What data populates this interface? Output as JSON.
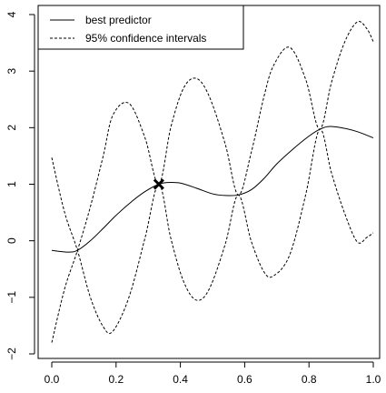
{
  "chart_data": {
    "type": "line",
    "title": "",
    "xlabel": "",
    "ylabel": "",
    "xlim": [
      0,
      1
    ],
    "ylim": [
      -2,
      4
    ],
    "grid": false,
    "legend_position": "top-left",
    "x_ticks": [
      "0.0",
      "0.2",
      "0.4",
      "0.6",
      "0.8",
      "1.0"
    ],
    "y_ticks": [
      "-2",
      "-1",
      "0",
      "1",
      "2",
      "3",
      "4"
    ],
    "legend": [
      {
        "label": "best predictor",
        "style": "solid"
      },
      {
        "label": "95% confidence intervals",
        "style": "dashed"
      }
    ],
    "observation": {
      "x": 0.333,
      "y": 1.0,
      "marker": "x"
    },
    "series": [
      {
        "name": "best predictor",
        "style": "solid",
        "x": [
          0.0,
          0.05,
          0.08,
          0.12,
          0.16,
          0.2,
          0.25,
          0.29,
          0.333,
          0.36,
          0.4,
          0.45,
          0.5,
          0.54,
          0.58,
          0.62,
          0.66,
          0.7,
          0.75,
          0.8,
          0.833,
          0.86,
          0.9,
          0.95,
          1.0
        ],
        "y": [
          -0.17,
          -0.2,
          -0.17,
          0.0,
          0.22,
          0.45,
          0.7,
          0.87,
          1.0,
          1.03,
          1.02,
          0.93,
          0.83,
          0.8,
          0.81,
          0.9,
          1.1,
          1.36,
          1.62,
          1.85,
          1.97,
          2.02,
          2.0,
          1.93,
          1.82
        ]
      },
      {
        "name": "95% confidence intervals",
        "style": "dashed",
        "x": [
          0.0,
          0.04,
          0.08,
          0.12,
          0.16,
          0.19,
          0.24,
          0.29,
          0.333,
          0.37,
          0.41,
          0.45,
          0.49,
          0.54,
          0.58,
          0.62,
          0.66,
          0.69,
          0.74,
          0.79,
          0.833,
          0.87,
          0.91,
          0.95,
          0.98,
          1.0
        ],
        "y": [
          -1.8,
          -0.85,
          -0.17,
          0.6,
          1.5,
          2.22,
          2.43,
          1.82,
          1.0,
          2.0,
          2.7,
          2.87,
          2.55,
          1.7,
          0.81,
          1.55,
          2.55,
          3.1,
          3.42,
          2.85,
          1.97,
          2.8,
          3.5,
          3.87,
          3.75,
          3.52
        ]
      },
      {
        "name": "",
        "style": "dashed",
        "x": [
          0.0,
          0.04,
          0.08,
          0.12,
          0.16,
          0.19,
          0.24,
          0.29,
          0.333,
          0.37,
          0.41,
          0.45,
          0.49,
          0.54,
          0.58,
          0.62,
          0.66,
          0.69,
          0.74,
          0.79,
          0.833,
          0.87,
          0.91,
          0.95,
          0.98,
          1.0
        ],
        "y": [
          1.47,
          0.5,
          -0.17,
          -1.0,
          -1.52,
          -1.6,
          -1.0,
          0.05,
          1.0,
          0.05,
          -0.72,
          -1.05,
          -0.85,
          -0.05,
          0.81,
          0.0,
          -0.55,
          -0.62,
          -0.25,
          0.82,
          1.97,
          1.2,
          0.5,
          -0.02,
          0.06,
          0.14
        ]
      }
    ]
  }
}
